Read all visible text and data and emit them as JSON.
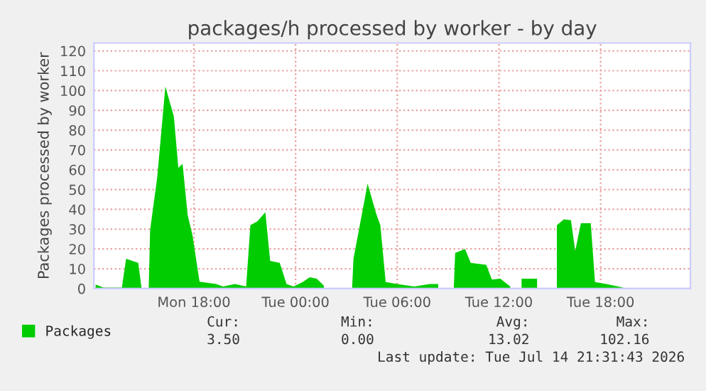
{
  "chart_data": {
    "type": "area",
    "title": "packages/h processed by worker - by day",
    "ylabel": "Packages processed by worker",
    "x": [
      "2026-07-13T12:12",
      "2026-07-13T12:40",
      "2026-07-13T13:45",
      "2026-07-13T14:00",
      "2026-07-13T14:43",
      "2026-07-13T14:55",
      "2026-07-13T15:00",
      "2026-07-13T15:20",
      "2026-07-13T15:25",
      "2026-07-13T15:50",
      "2026-07-13T16:19",
      "2026-07-13T16:49",
      "2026-07-13T17:05",
      "2026-07-13T17:20",
      "2026-07-13T17:38",
      "2026-07-13T17:55",
      "2026-07-13T18:20",
      "2026-07-13T19:19",
      "2026-07-13T19:43",
      "2026-07-13T20:25",
      "2026-07-13T21:05",
      "2026-07-13T21:20",
      "2026-07-13T21:45",
      "2026-07-13T22:13",
      "2026-07-13T22:30",
      "2026-07-13T23:04",
      "2026-07-13T23:28",
      "2026-07-13T23:53",
      "2026-07-14T00:25",
      "2026-07-14T00:50",
      "2026-07-14T01:15",
      "2026-07-14T01:40",
      "2026-07-14T01:50",
      "2026-07-14T03:20",
      "2026-07-14T03:25",
      "2026-07-14T04:15",
      "2026-07-14T04:45",
      "2026-07-14T05:00",
      "2026-07-14T05:19",
      "2026-07-14T06:00",
      "2026-07-14T07:00",
      "2026-07-14T07:55",
      "2026-07-14T08:25",
      "2026-07-14T08:30",
      "2026-07-14T09:20",
      "2026-07-14T09:25",
      "2026-07-14T10:00",
      "2026-07-14T10:20",
      "2026-07-14T11:15",
      "2026-07-14T11:35",
      "2026-07-14T12:05",
      "2026-07-14T12:40",
      "2026-07-14T12:45",
      "2026-07-14T13:20",
      "2026-07-14T14:15",
      "2026-07-14T14:20",
      "2026-07-14T15:25",
      "2026-07-14T15:50",
      "2026-07-14T16:15",
      "2026-07-14T16:30",
      "2026-07-14T16:50",
      "2026-07-14T17:25",
      "2026-07-14T17:40",
      "2026-07-14T18:20",
      "2026-07-14T19:20"
    ],
    "series": [
      {
        "name": "Packages",
        "color": "#00cc00",
        "values": [
          2,
          0.5,
          0.5,
          15,
          13,
          0,
          null,
          0,
          29.5,
          56,
          102,
          87,
          61,
          63,
          37,
          27,
          3.5,
          2.3,
          1,
          2.3,
          1,
          32,
          34,
          38.6,
          14,
          13,
          2.3,
          1,
          3.3,
          5.7,
          5,
          1.5,
          null,
          0,
          15,
          53,
          38,
          32,
          3.3,
          2.3,
          1,
          2.3,
          2.3,
          null,
          0,
          18,
          20,
          13,
          12,
          4.5,
          5,
          1,
          null,
          5,
          5,
          null,
          32,
          35,
          34.5,
          19,
          33,
          33,
          3.3,
          2.3,
          0.5
        ]
      }
    ],
    "xlim": [
      "2026-07-13T12:06",
      "2026-07-14T23:18"
    ],
    "ylim": [
      0,
      124
    ],
    "xticks": [
      {
        "value": "2026-07-13T18:00",
        "label": "Mon 18:00"
      },
      {
        "value": "2026-07-14T00:00",
        "label": "Tue 00:00"
      },
      {
        "value": "2026-07-14T06:00",
        "label": "Tue 06:00"
      },
      {
        "value": "2026-07-14T12:00",
        "label": "Tue 12:00"
      },
      {
        "value": "2026-07-14T18:00",
        "label": "Tue 18:00"
      }
    ],
    "yticks": [
      0,
      10,
      20,
      30,
      40,
      50,
      60,
      70,
      80,
      90,
      100,
      110,
      120
    ],
    "grid": true,
    "legend": "bottom",
    "annotations": [
      "Cur:",
      "Min:",
      "Avg:",
      "Max:",
      "3.50",
      "0.00",
      "13.02",
      "102.16",
      "Last update: Tue Jul 14 21:31:43 2026"
    ]
  }
}
